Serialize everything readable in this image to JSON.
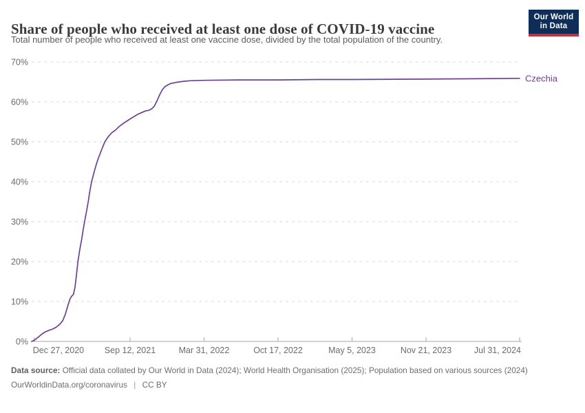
{
  "header": {
    "title": "Share of people who received at least one dose of COVID-19 vaccine",
    "subtitle": "Total number of people who received at least one vaccine dose, divided by the total population of the country.",
    "logo": {
      "line1": "Our World",
      "line2": "in Data"
    }
  },
  "chart_data": {
    "type": "line",
    "title": "Share of people who received at least one dose of COVID-19 vaccine",
    "xlabel": "",
    "ylabel": "",
    "grid": "dashed-horizontal",
    "legend": "end-of-line-label",
    "x_domain": [
      "2020-12-20",
      "2024-07-31"
    ],
    "y_domain": [
      0,
      70
    ],
    "y_ticks": [
      {
        "label": "0%",
        "value": 0
      },
      {
        "label": "10%",
        "value": 10
      },
      {
        "label": "20%",
        "value": 20
      },
      {
        "label": "30%",
        "value": 30
      },
      {
        "label": "40%",
        "value": 40
      },
      {
        "label": "50%",
        "value": 50
      },
      {
        "label": "60%",
        "value": 60
      },
      {
        "label": "70%",
        "value": 70
      }
    ],
    "x_ticks": [
      {
        "label": "Dec 27, 2020",
        "date": "2020-12-27"
      },
      {
        "label": "Sep 12, 2021",
        "date": "2021-09-12"
      },
      {
        "label": "Mar 31, 2022",
        "date": "2022-03-31"
      },
      {
        "label": "Oct 17, 2022",
        "date": "2022-10-17"
      },
      {
        "label": "May 5, 2023",
        "date": "2023-05-05"
      },
      {
        "label": "Nov 21, 2023",
        "date": "2023-11-21"
      },
      {
        "label": "Jul 31, 2024",
        "date": "2024-07-31"
      }
    ],
    "series": [
      {
        "name": "Czechia",
        "color": "#6d3e91",
        "points": [
          [
            "2020-12-20",
            0.0
          ],
          [
            "2020-12-27",
            0.3
          ],
          [
            "2021-01-06",
            1.0
          ],
          [
            "2021-01-16",
            1.8
          ],
          [
            "2021-01-26",
            2.4
          ],
          [
            "2021-02-05",
            2.8
          ],
          [
            "2021-02-15",
            3.1
          ],
          [
            "2021-02-25",
            3.6
          ],
          [
            "2021-03-07",
            4.4
          ],
          [
            "2021-03-14",
            5.2
          ],
          [
            "2021-03-21",
            6.8
          ],
          [
            "2021-03-28",
            9.0
          ],
          [
            "2021-04-02",
            10.5
          ],
          [
            "2021-04-06",
            11.2
          ],
          [
            "2021-04-12",
            11.8
          ],
          [
            "2021-04-16",
            13.5
          ],
          [
            "2021-04-20",
            16.5
          ],
          [
            "2021-04-24",
            20.0
          ],
          [
            "2021-04-29",
            23.0
          ],
          [
            "2021-05-04",
            25.5
          ],
          [
            "2021-05-08",
            27.8
          ],
          [
            "2021-05-12",
            30.0
          ],
          [
            "2021-05-17",
            32.5
          ],
          [
            "2021-05-22",
            35.0
          ],
          [
            "2021-05-26",
            37.5
          ],
          [
            "2021-05-31",
            40.0
          ],
          [
            "2021-06-05",
            41.8
          ],
          [
            "2021-06-10",
            43.5
          ],
          [
            "2021-06-15",
            45.0
          ],
          [
            "2021-06-20",
            46.3
          ],
          [
            "2021-06-25",
            47.5
          ],
          [
            "2021-06-30",
            48.7
          ],
          [
            "2021-07-06",
            50.0
          ],
          [
            "2021-07-12",
            50.9
          ],
          [
            "2021-07-18",
            51.6
          ],
          [
            "2021-07-25",
            52.3
          ],
          [
            "2021-08-03",
            52.9
          ],
          [
            "2021-08-13",
            53.8
          ],
          [
            "2021-08-23",
            54.5
          ],
          [
            "2021-09-02",
            55.1
          ],
          [
            "2021-09-12",
            55.7
          ],
          [
            "2021-09-22",
            56.3
          ],
          [
            "2021-10-03",
            56.9
          ],
          [
            "2021-10-13",
            57.3
          ],
          [
            "2021-10-23",
            57.7
          ],
          [
            "2021-11-02",
            57.9
          ],
          [
            "2021-11-10",
            58.3
          ],
          [
            "2021-11-17",
            59.0
          ],
          [
            "2021-11-24",
            60.3
          ],
          [
            "2021-12-01",
            61.8
          ],
          [
            "2021-12-08",
            63.0
          ],
          [
            "2021-12-15",
            63.8
          ],
          [
            "2021-12-22",
            64.2
          ],
          [
            "2021-12-31",
            64.6
          ],
          [
            "2022-01-15",
            64.9
          ],
          [
            "2022-01-31",
            65.1
          ],
          [
            "2022-02-20",
            65.3
          ],
          [
            "2022-03-31",
            65.4
          ],
          [
            "2022-06-30",
            65.5
          ],
          [
            "2022-10-17",
            65.5
          ],
          [
            "2023-02-01",
            65.6
          ],
          [
            "2023-05-05",
            65.6
          ],
          [
            "2023-11-21",
            65.7
          ],
          [
            "2024-04-01",
            65.8
          ],
          [
            "2024-07-31",
            65.9
          ]
        ]
      }
    ]
  },
  "footer": {
    "data_source_label": "Data source:",
    "data_source_text": " Official data collated by Our World in Data (2024); World Health Organisation (2025); Population based on various sources (2024)",
    "link": "OurWorldinData.org/coronavirus",
    "separator": "|",
    "license": "CC BY"
  },
  "colors": {
    "line": "#6d3e91",
    "grid": "#dadada",
    "axis": "#a5a5a5",
    "tick_text": "#6b6b70",
    "logo_bg": "#0f2e57",
    "logo_stripe": "#c5303e"
  }
}
